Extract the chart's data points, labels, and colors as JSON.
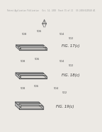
{
  "background_color": "#ece9e4",
  "header_text": "Patent Application Publication   Oct. 14, 2008  Sheet 15 of 21   US 2008/0245548 A1",
  "fig_labels": [
    "FIG. 17(c)",
    "FIG. 18(c)",
    "FIG. 19(c)"
  ],
  "fig_label_fontsize": 3.8,
  "header_fontsize": 1.8,
  "line_color": "#444444",
  "fill_top": "#d0d0d0",
  "fill_front": "#a8a8a8",
  "fill_side": "#b8b8b8",
  "fill_inner": "#ece9e4",
  "annotation_color": "#555555",
  "annot_fontsize": 2.8
}
